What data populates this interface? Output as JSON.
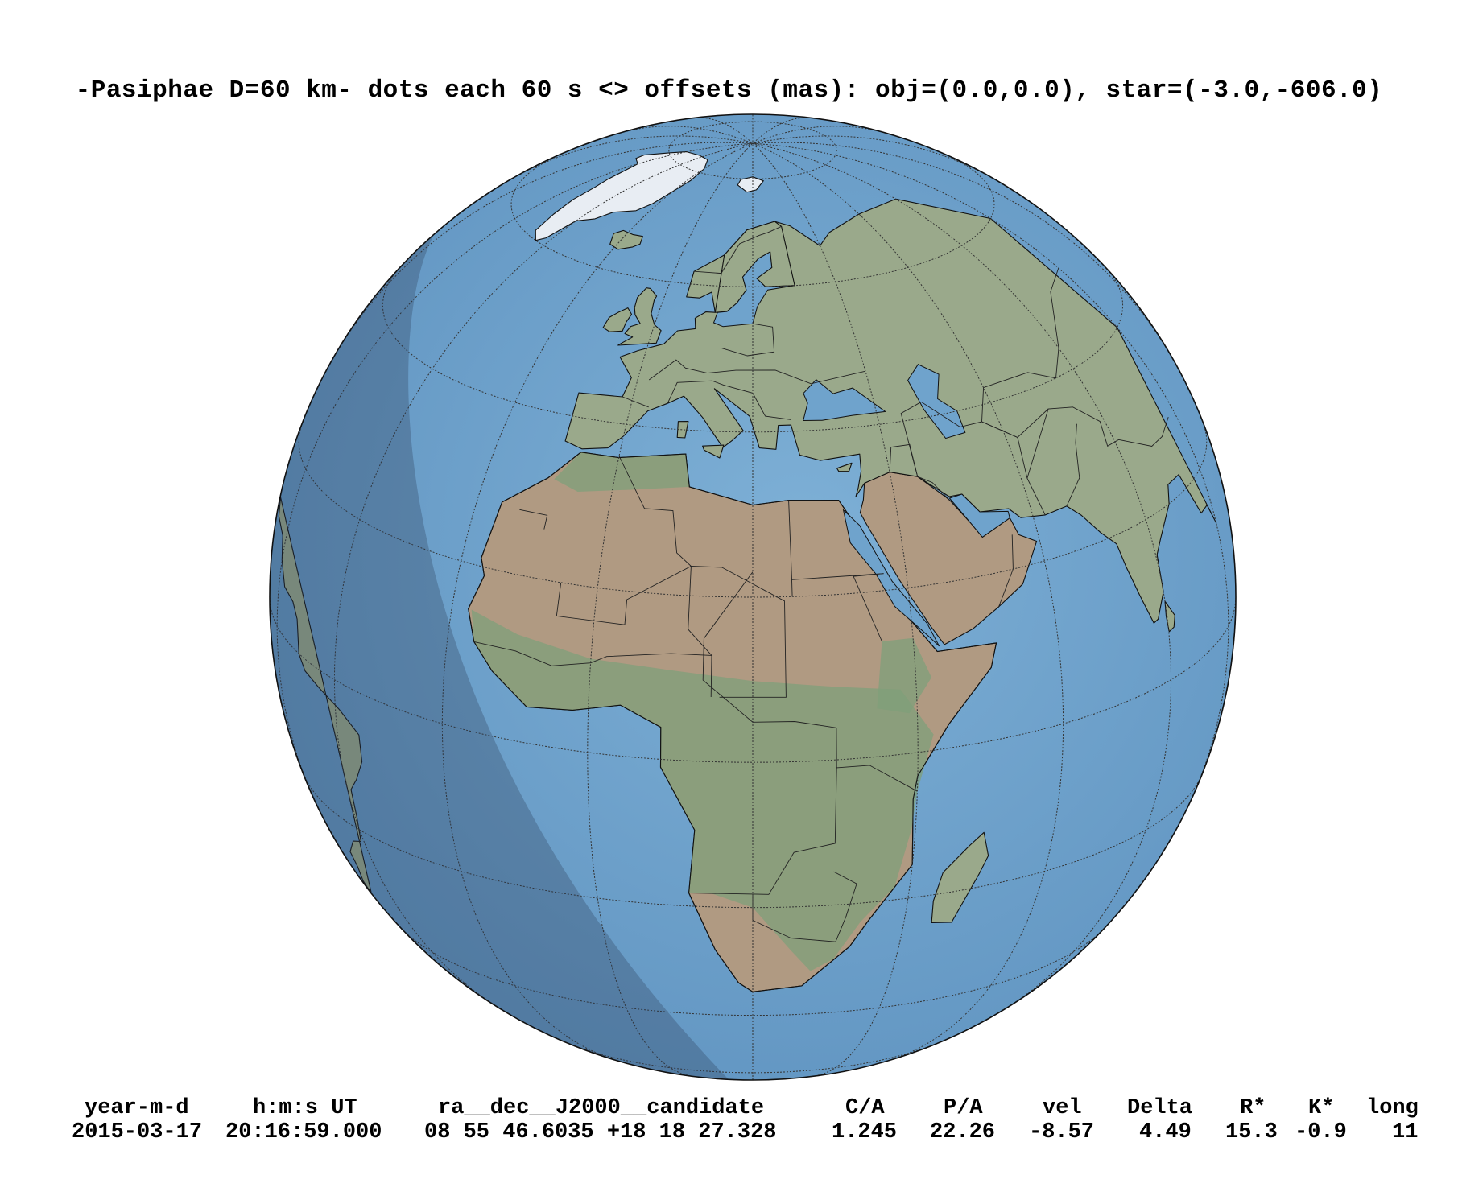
{
  "title": "-Pasiphae D=60 km- dots each 60 s <> offsets (mas): obj=(0.0,0.0), star=(-3.0,-606.0)",
  "map": {
    "projection": "orthographic",
    "center": {
      "lon": 20,
      "lat": 20
    },
    "graticule_step_deg": 20,
    "shadow_edge": "night limb on western side",
    "colors": {
      "ocean": "#6fa3cc",
      "land": "#9aa98b",
      "desert": "#b09a82",
      "ice": "#e8edf3",
      "shadow": "#2a3d57",
      "graticule": "#333333",
      "coast": "#111111"
    }
  },
  "table": {
    "headers": [
      "year-m-d",
      "h:m:s UT",
      "ra__dec__J2000__candidate",
      "C/A",
      "P/A",
      "vel",
      "Delta",
      "R*",
      "K*",
      "long"
    ],
    "row": [
      "2015-03-17",
      "20:16:59.000",
      "08 55 46.6035 +18 18 27.328",
      "1.245",
      "22.26",
      "-8.57",
      "4.49",
      "15.3",
      "-0.9",
      "11"
    ]
  }
}
